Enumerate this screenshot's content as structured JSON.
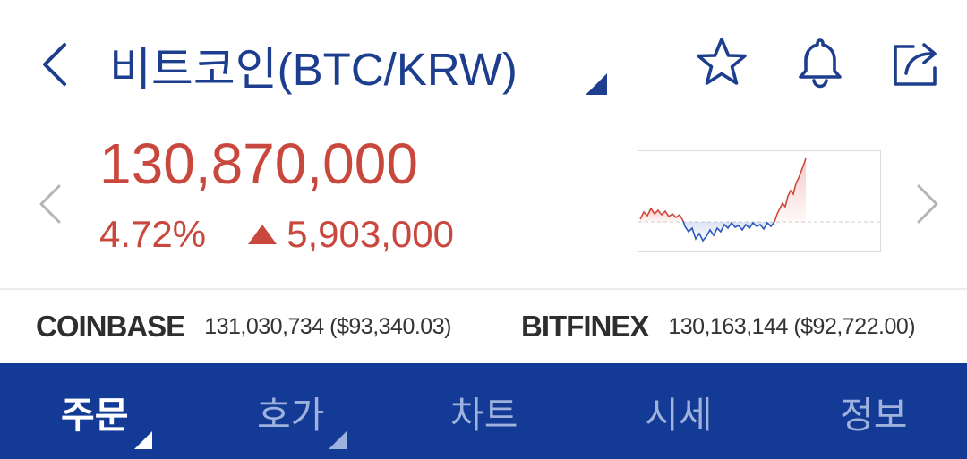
{
  "header": {
    "title": "비트코인(BTC/KRW)",
    "back_icon": "chevron-left-icon",
    "favorite_icon": "star-outline-icon",
    "alert_icon": "bell-outline-icon",
    "share_icon": "share-icon",
    "accent_color": "#1d3e8e"
  },
  "ticker": {
    "price": "130,870,000",
    "change_percent": "4.72%",
    "change_amount": "5,903,000",
    "direction": "up",
    "up_color": "#c9483e",
    "down_color": "#1d4aa8"
  },
  "exchanges": [
    {
      "name": "COINBASE",
      "value": "131,030,734 ($93,340.03)"
    },
    {
      "name": "BITFINEX",
      "value": "130,163,144 ($92,722.00)"
    }
  ],
  "tabs": [
    {
      "label": "주문",
      "active": true
    },
    {
      "label": "호가",
      "active": false
    },
    {
      "label": "차트",
      "active": false
    },
    {
      "label": "시세",
      "active": false
    },
    {
      "label": "정보",
      "active": false
    }
  ],
  "tabbar_color": "#133a95"
}
